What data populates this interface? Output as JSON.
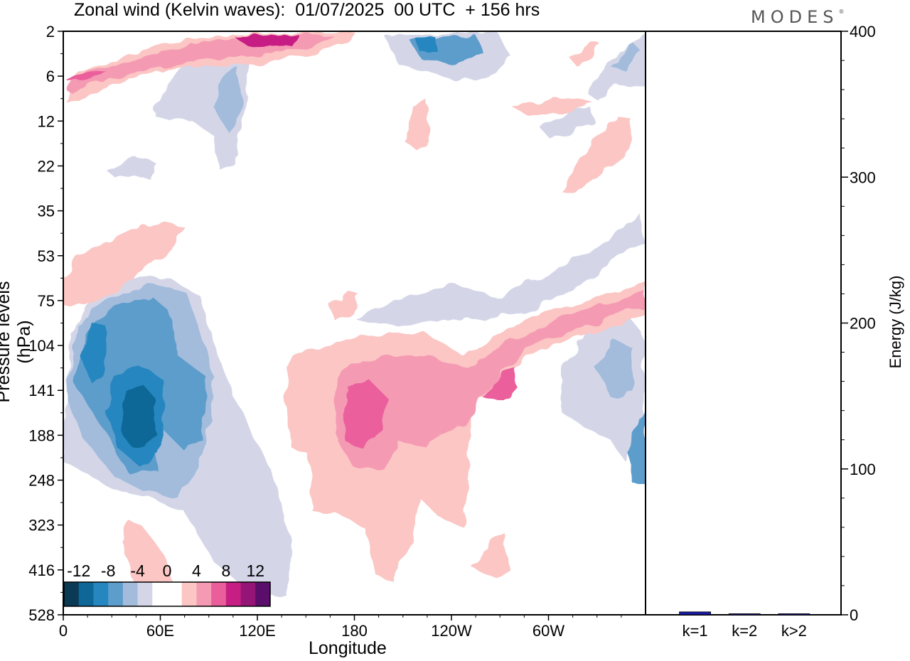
{
  "title": "Zonal wind (Kelvin waves):  01/07/2025  00 UTC  + 156 hrs",
  "brand": "MODES",
  "brand_mark": "®",
  "chart_data": [
    {
      "type": "heatmap",
      "xlabel": "Longitude",
      "ylabel": "Pressure levels (hPa)",
      "x_ticks": [
        "0",
        "60E",
        "120E",
        "180",
        "120W",
        "60W"
      ],
      "x_range_deg_east": [
        0,
        360
      ],
      "y_ticks": [
        "2",
        "6",
        "12",
        "22",
        "35",
        "53",
        "75",
        "104",
        "141",
        "188",
        "248",
        "323",
        "416",
        "528"
      ],
      "y_range": [
        2,
        528
      ],
      "colorbar": {
        "labels": [
          "-12",
          "-8",
          "-4",
          "0",
          "4",
          "8",
          "12"
        ],
        "colors": [
          "#0b3a54",
          "#0f6798",
          "#2686bf",
          "#5d9dcc",
          "#a3bcdc",
          "#d4d6e8",
          "#ffffff",
          "#ffffff",
          "#fbc6c3",
          "#f59ab3",
          "#ea5e9c",
          "#c71e84",
          "#951577",
          "#5a0d6a"
        ]
      },
      "features": [
        {
          "sign": "negative",
          "level": "-12",
          "lon": 46,
          "p": 160
        },
        {
          "sign": "negative",
          "level": "-8",
          "lon": 24,
          "p": 112
        },
        {
          "sign": "negative",
          "level": "-8",
          "lon": 80,
          "p": 155
        },
        {
          "sign": "negative",
          "level": "-8",
          "lon": 218,
          "p": 3
        },
        {
          "sign": "positive",
          "level": "8",
          "lon": 186,
          "p": 160
        },
        {
          "sign": "positive",
          "level": "8",
          "lon": 264,
          "p": 135
        },
        {
          "sign": "positive",
          "level": "12",
          "lon": 118,
          "p": 3
        },
        {
          "sign": "positive",
          "level": "8",
          "lon": 20,
          "p": 6
        }
      ]
    },
    {
      "type": "bar",
      "categories": [
        "k=1",
        "k=2",
        "k>2"
      ],
      "values": [
        2,
        0.4,
        0.6
      ],
      "ylabel": "Energy (J/kg)",
      "ylim": [
        0,
        400
      ],
      "y_ticks": [
        "0",
        "100",
        "200",
        "300",
        "400"
      ],
      "bar_color": "#1a1aa8"
    }
  ]
}
